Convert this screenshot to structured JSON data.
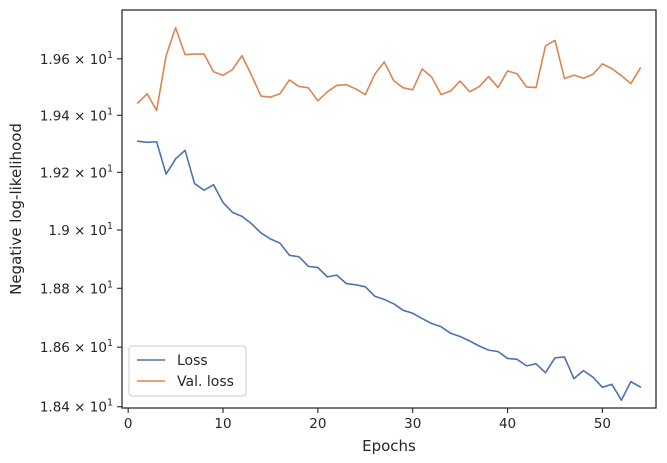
{
  "chart_data": {
    "type": "line",
    "xlabel": "Epochs",
    "ylabel": "Negative log-likelihood",
    "xlim": [
      -0.65,
      55.65
    ],
    "ylim": [
      18.3957,
      19.7745
    ],
    "yscale": "log",
    "grid": false,
    "legend_position": "lower-left",
    "x_ticks": [
      0,
      10,
      20,
      30,
      40,
      50
    ],
    "x_tick_labels": [
      "0",
      "10",
      "20",
      "30",
      "40",
      "50"
    ],
    "y_ticks": [
      18.4,
      18.6,
      18.8,
      19.0,
      19.2,
      19.4,
      19.6
    ],
    "y_tick_labels": [
      {
        "mantissa": "1.84 × 10",
        "exponent": "1"
      },
      {
        "mantissa": "1.86 × 10",
        "exponent": "1"
      },
      {
        "mantissa": "1.88 × 10",
        "exponent": "1"
      },
      {
        "mantissa": "1.9 × 10",
        "exponent": "1"
      },
      {
        "mantissa": "1.92 × 10",
        "exponent": "1"
      },
      {
        "mantissa": "1.94 × 10",
        "exponent": "1"
      },
      {
        "mantissa": "1.96 × 10",
        "exponent": "1"
      }
    ],
    "x": [
      1,
      2,
      3,
      4,
      5,
      6,
      7,
      8,
      9,
      10,
      11,
      12,
      13,
      14,
      15,
      16,
      17,
      18,
      19,
      20,
      21,
      22,
      23,
      24,
      25,
      26,
      27,
      28,
      29,
      30,
      31,
      32,
      33,
      34,
      35,
      36,
      37,
      38,
      39,
      40,
      41,
      42,
      43,
      44,
      45,
      46,
      47,
      48,
      49,
      50,
      51,
      52,
      53,
      54
    ],
    "series": [
      {
        "name": "Loss",
        "color": "#4c72b0",
        "values": [
          19.309,
          19.305,
          19.307,
          19.194,
          19.247,
          19.277,
          19.161,
          19.138,
          19.157,
          19.095,
          19.061,
          19.047,
          19.022,
          18.99,
          18.969,
          18.955,
          18.913,
          18.908,
          18.875,
          18.871,
          18.839,
          18.845,
          18.816,
          18.812,
          18.805,
          18.773,
          18.762,
          18.747,
          18.725,
          18.715,
          18.697,
          18.68,
          18.669,
          18.647,
          18.636,
          18.621,
          18.604,
          18.59,
          18.585,
          18.562,
          18.559,
          18.537,
          18.544,
          18.514,
          18.564,
          18.567,
          18.494,
          18.521,
          18.499,
          18.465,
          18.475,
          18.422,
          18.484,
          18.466
        ]
      },
      {
        "name": "Val. loss",
        "color": "#dd8452",
        "values": [
          19.443,
          19.476,
          19.417,
          19.611,
          19.711,
          19.615,
          19.617,
          19.617,
          19.554,
          19.541,
          19.562,
          19.611,
          19.542,
          19.468,
          19.464,
          19.476,
          19.525,
          19.502,
          19.497,
          19.451,
          19.483,
          19.506,
          19.508,
          19.493,
          19.473,
          19.545,
          19.589,
          19.522,
          19.497,
          19.49,
          19.564,
          19.535,
          19.473,
          19.486,
          19.521,
          19.483,
          19.501,
          19.537,
          19.498,
          19.557,
          19.547,
          19.5,
          19.498,
          19.646,
          19.666,
          19.53,
          19.542,
          19.531,
          19.545,
          19.582,
          19.565,
          19.54,
          19.512,
          19.567
        ]
      }
    ]
  }
}
